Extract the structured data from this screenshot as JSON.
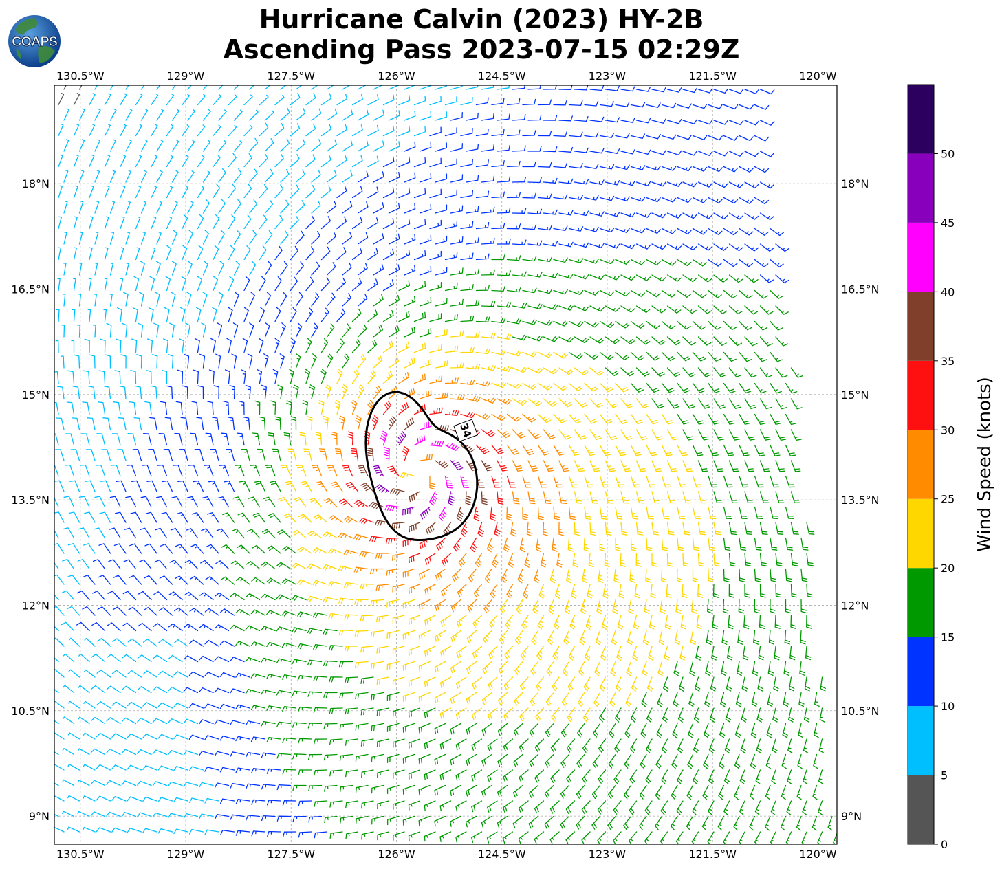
{
  "title": {
    "line1": "Hurricane Calvin (2023) HY-2B",
    "line2": "Ascending Pass 2023-07-15 02:29Z"
  },
  "logo": {
    "text": "COAPS",
    "icon": "globe-icon"
  },
  "map": {
    "lon_ticks": [
      "130.5°W",
      "129°W",
      "127.5°W",
      "126°W",
      "124.5°W",
      "123°W",
      "121.5°W",
      "120°W"
    ],
    "lat_ticks": [
      "18°N",
      "16.5°N",
      "15°N",
      "13.5°N",
      "12°N",
      "10.5°N",
      "9°N"
    ],
    "lon_values": [
      -130.5,
      -129,
      -127.5,
      -126,
      -124.5,
      -123,
      -121.5,
      -120
    ],
    "lat_values": [
      18,
      16.5,
      15,
      13.5,
      12,
      10.5,
      9
    ],
    "lon_range": [
      -130.87,
      -119.73
    ],
    "lat_range": [
      8.6,
      19.4
    ],
    "storm_center": {
      "lon": -125.7,
      "lat": 13.9
    },
    "contour_label": "34",
    "gridlines": true
  },
  "colorbar": {
    "label": "Wind Speed (knots)",
    "ticks": [
      "0",
      "5",
      "10",
      "15",
      "20",
      "25",
      "30",
      "35",
      "40",
      "45",
      "50"
    ],
    "bins": [
      {
        "min": 0,
        "max": 5,
        "color": "#555555"
      },
      {
        "min": 5,
        "max": 10,
        "color": "#00bfff"
      },
      {
        "min": 10,
        "max": 15,
        "color": "#0033ff"
      },
      {
        "min": 15,
        "max": 20,
        "color": "#009900"
      },
      {
        "min": 20,
        "max": 25,
        "color": "#ffd700"
      },
      {
        "min": 25,
        "max": 30,
        "color": "#ff8c00"
      },
      {
        "min": 30,
        "max": 35,
        "color": "#ff1010"
      },
      {
        "min": 35,
        "max": 40,
        "color": "#7f3f2a"
      },
      {
        "min": 40,
        "max": 45,
        "color": "#ff00ff"
      },
      {
        "min": 45,
        "max": 50,
        "color": "#8800bb"
      },
      {
        "min": 50,
        "max": 55,
        "color": "#2b005f"
      }
    ]
  }
}
